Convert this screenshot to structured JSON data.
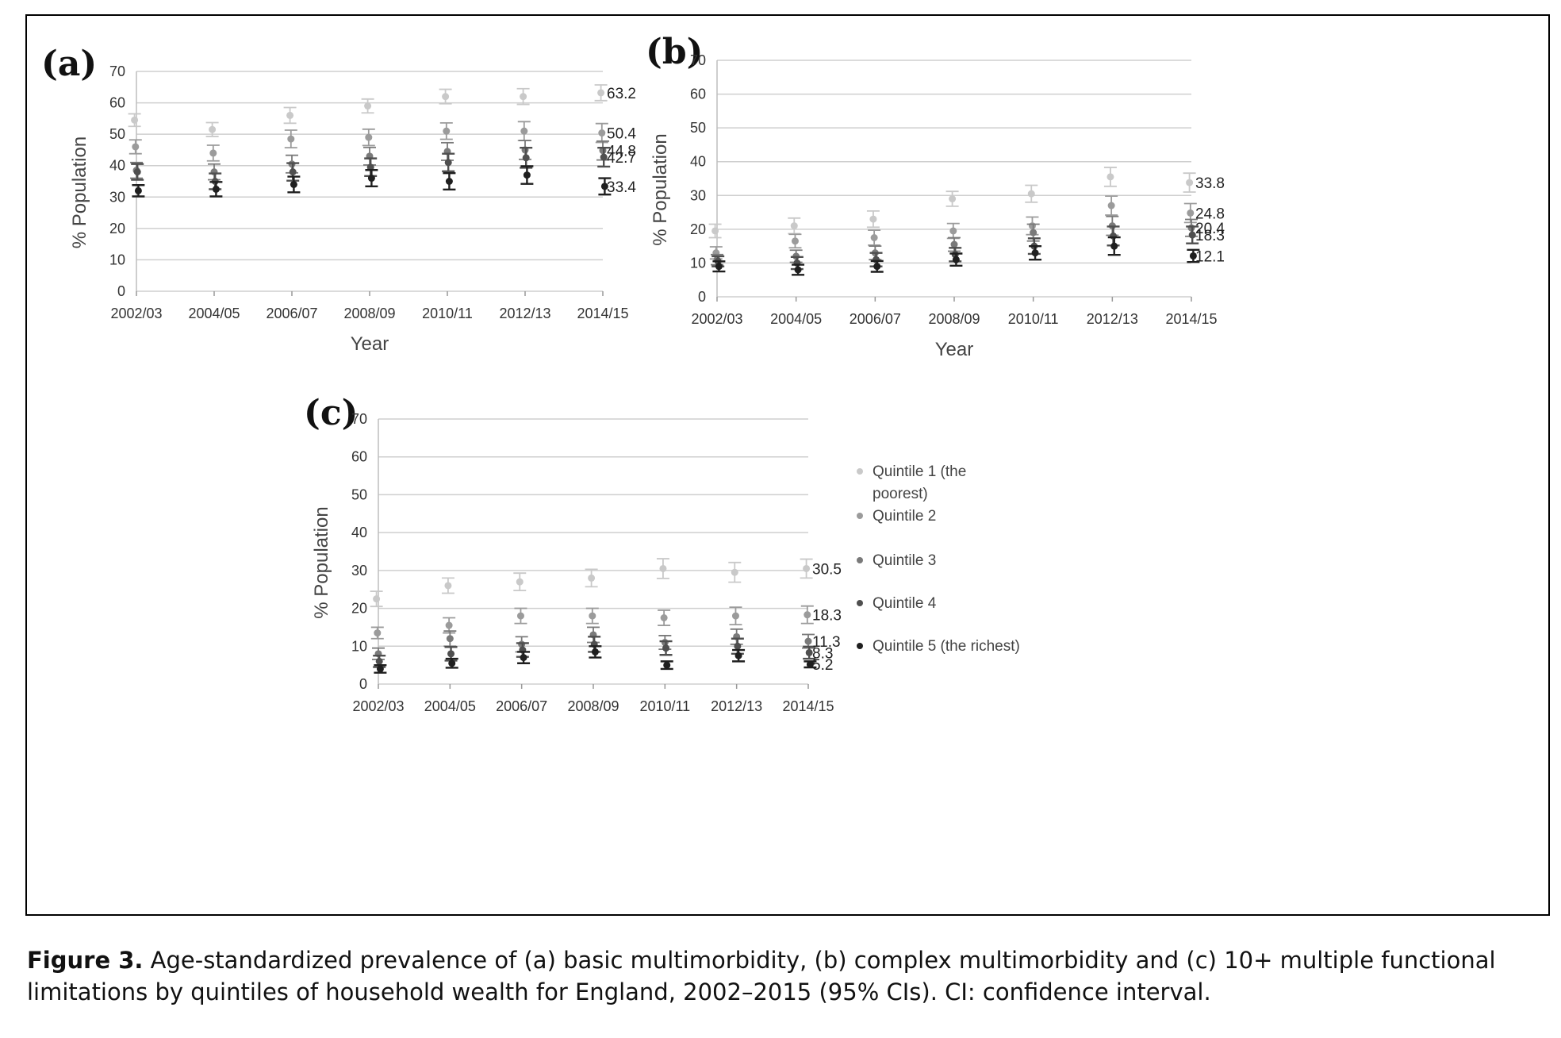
{
  "figure": {
    "caption_label": "Figure 3.",
    "caption_text": "Age-standardized prevalence of (a) basic multimorbidity, (b) complex multimorbidity and (c) 10+ multiple functional limitations by quintiles of household wealth for England, 2002–2015 (95% CIs). CI: confidence interval."
  },
  "colors": {
    "q1": "#c9c9c9",
    "q2": "#9b9b9b",
    "q3": "#7a7a7a",
    "q4": "#4f4f4f",
    "q5": "#1f1f1f",
    "grid": "#cfcfcf"
  },
  "legend": {
    "items": [
      "Quintile 1 (the poorest)",
      "Quintile 2",
      "Quintile 3",
      "Quintile 4",
      "Quintile 5 (the richest)"
    ]
  },
  "chart_data": [
    {
      "panel": "(a)",
      "type": "scatter",
      "xlabel": "Year",
      "ylabel": "% Population",
      "ylim": [
        0,
        70
      ],
      "yticks": [
        0,
        10,
        20,
        30,
        40,
        50,
        60,
        70
      ],
      "categories": [
        "2002/03",
        "2004/05",
        "2006/07",
        "2008/09",
        "2010/11",
        "2012/13",
        "2014/15"
      ],
      "grid": true,
      "end_labels": [
        "63.2",
        "50.4",
        "44.8",
        "42.7",
        "33.4"
      ],
      "series": [
        {
          "values": [
            54.5,
            51.5,
            56.0,
            59.0,
            62.0,
            62.0,
            63.2
          ],
          "ci": [
            2.0,
            2.2,
            2.5,
            2.2,
            2.3,
            2.5,
            2.5
          ]
        },
        {
          "values": [
            46.0,
            44.0,
            48.5,
            49.0,
            51.0,
            51.0,
            50.4
          ],
          "ci": [
            2.2,
            2.5,
            2.8,
            2.6,
            2.6,
            3.0,
            3.0
          ]
        },
        {
          "values": [
            38.5,
            38.0,
            40.5,
            43.0,
            44.5,
            45.0,
            44.8
          ],
          "ci": [
            2.5,
            2.5,
            2.8,
            2.8,
            2.8,
            3.0,
            3.0
          ]
        },
        {
          "values": [
            38.0,
            35.0,
            38.0,
            39.5,
            41.0,
            42.5,
            42.7
          ],
          "ci": [
            2.5,
            2.5,
            2.8,
            2.8,
            2.8,
            3.2,
            3.0
          ]
        },
        {
          "values": [
            32.0,
            32.5,
            34.0,
            36.0,
            35.0,
            37.0,
            33.4
          ],
          "ci": [
            1.8,
            2.3,
            2.5,
            2.6,
            2.6,
            2.8,
            2.6
          ]
        }
      ]
    },
    {
      "panel": "(b)",
      "type": "scatter",
      "xlabel": "Year",
      "ylabel": "% Population",
      "ylim": [
        0,
        70
      ],
      "yticks": [
        0,
        10,
        20,
        30,
        40,
        50,
        60,
        70
      ],
      "categories": [
        "2002/03",
        "2004/05",
        "2006/07",
        "2008/09",
        "2010/11",
        "2012/13",
        "2014/15"
      ],
      "grid": true,
      "end_labels": [
        "33.8",
        "24.8",
        "20.4",
        "18.3",
        "12.1"
      ],
      "series": [
        {
          "values": [
            19.5,
            21.0,
            23.0,
            29.0,
            30.5,
            35.5,
            33.8
          ],
          "ci": [
            2.0,
            2.3,
            2.4,
            2.2,
            2.5,
            2.8,
            2.8
          ]
        },
        {
          "values": [
            13.0,
            16.5,
            17.5,
            19.5,
            21.0,
            27.0,
            24.8
          ],
          "ci": [
            1.8,
            2.0,
            2.2,
            2.2,
            2.6,
            2.8,
            2.8
          ]
        },
        {
          "values": [
            11.0,
            12.0,
            13.0,
            15.5,
            19.0,
            21.0,
            20.4
          ],
          "ci": [
            1.5,
            1.8,
            2.0,
            2.0,
            2.5,
            2.8,
            2.5
          ]
        },
        {
          "values": [
            10.5,
            10.0,
            11.0,
            12.5,
            15.0,
            18.0,
            18.3
          ],
          "ci": [
            1.5,
            1.8,
            2.0,
            2.0,
            2.3,
            2.8,
            2.5
          ]
        },
        {
          "values": [
            9.0,
            8.0,
            9.0,
            11.0,
            13.0,
            15.0,
            12.1
          ],
          "ci": [
            1.5,
            1.5,
            1.6,
            1.8,
            2.0,
            2.6,
            1.8
          ]
        }
      ]
    },
    {
      "panel": "(c)",
      "type": "scatter",
      "xlabel": "",
      "ylabel": "% Population",
      "ylim": [
        0,
        70
      ],
      "yticks": [
        0,
        10,
        20,
        30,
        40,
        50,
        60,
        70
      ],
      "categories": [
        "2002/03",
        "2004/05",
        "2006/07",
        "2008/09",
        "2010/11",
        "2012/13",
        "2014/15"
      ],
      "grid": true,
      "end_labels": [
        "30.5",
        "18.3",
        "11.3",
        "8.3",
        "5.2"
      ],
      "series": [
        {
          "values": [
            22.5,
            26.0,
            27.0,
            28.0,
            30.5,
            29.5,
            30.5
          ],
          "ci": [
            2.0,
            2.0,
            2.3,
            2.3,
            2.6,
            2.6,
            2.5
          ]
        },
        {
          "values": [
            13.5,
            15.5,
            18.0,
            18.0,
            17.5,
            18.0,
            18.3
          ],
          "ci": [
            1.5,
            2.0,
            2.0,
            2.0,
            2.0,
            2.3,
            2.3
          ]
        },
        {
          "values": [
            8.0,
            12.0,
            10.5,
            13.0,
            11.0,
            12.5,
            11.3
          ],
          "ci": [
            1.5,
            2.0,
            2.0,
            2.0,
            1.8,
            2.0,
            1.8
          ]
        },
        {
          "values": [
            6.0,
            8.0,
            9.0,
            10.5,
            9.5,
            10.0,
            8.3
          ],
          "ci": [
            1.5,
            1.8,
            1.8,
            2.0,
            1.8,
            2.0,
            1.6
          ]
        },
        {
          "values": [
            4.0,
            5.5,
            7.0,
            8.5,
            5.0,
            7.5,
            5.2
          ],
          "ci": [
            1.0,
            1.2,
            1.5,
            1.5,
            1.0,
            1.5,
            0.8
          ]
        }
      ]
    }
  ]
}
